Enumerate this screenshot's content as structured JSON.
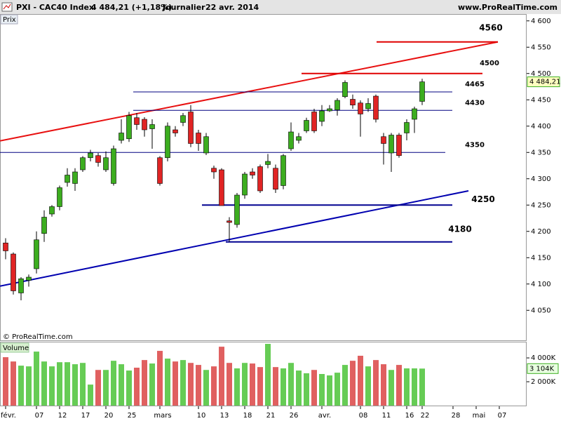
{
  "chart_data": {
    "type": "candlestick",
    "title": "PXI - CAC40 Index",
    "quote": "4 484,21 (+1,18%)",
    "period": "Journalier",
    "date": "22 avr. 2014",
    "source": "www.ProRealTime.com",
    "panel_label": "Prix",
    "copyright": "© ProRealTime.com",
    "up_color": "#3cad1f",
    "down_color": "#e02424",
    "categories": [
      "févr.",
      null,
      null,
      null,
      "07",
      null,
      null,
      "12",
      null,
      null,
      "17",
      null,
      null,
      "20",
      null,
      null,
      "25",
      null,
      null,
      null,
      "mars",
      null,
      null,
      null,
      null,
      "10",
      null,
      null,
      "13",
      null,
      null,
      "18",
      null,
      null,
      "21",
      null,
      null,
      "26",
      null,
      null,
      null,
      "avr.",
      null,
      null,
      null,
      null,
      "08",
      null,
      null,
      "11",
      null,
      null,
      "16",
      null,
      "22",
      null,
      null,
      null,
      "28",
      null,
      null,
      "mai",
      null,
      null,
      "07"
    ],
    "open": [
      4178,
      4157,
      4083,
      4107,
      4129,
      4196,
      4233,
      4247,
      4293,
      4291,
      4317,
      4340,
      4344,
      4317,
      4291,
      4373,
      4376,
      4416,
      4413,
      4395,
      4340,
      4340,
      4393,
      4407,
      4427,
      4387,
      4349,
      4320,
      4317,
      4220,
      4213,
      4269,
      4313,
      4323,
      4327,
      4320,
      4287,
      4357,
      4373,
      4391,
      4427,
      4409,
      4429,
      4431,
      4456,
      4451,
      4444,
      4433,
      4457,
      4380,
      4349,
      4383,
      4387,
      4413,
      4447,
      null,
      null,
      null,
      null,
      null,
      null,
      null,
      null,
      null,
      null
    ],
    "high": [
      4187,
      4160,
      4113,
      4118,
      4200,
      4240,
      4250,
      4287,
      4320,
      4320,
      4343,
      4355,
      4349,
      4352,
      4363,
      4413,
      4427,
      4425,
      4417,
      4413,
      4343,
      4407,
      4400,
      4425,
      4440,
      4393,
      4387,
      4325,
      4320,
      4227,
      4273,
      4313,
      4320,
      4327,
      4347,
      4327,
      4347,
      4407,
      4387,
      4416,
      4433,
      4440,
      4440,
      4453,
      4487,
      4460,
      4449,
      4453,
      4460,
      4387,
      4387,
      4387,
      4413,
      4437,
      4490,
      null,
      null,
      null,
      null,
      null,
      null,
      null,
      null,
      null,
      null
    ],
    "low": [
      4147,
      4080,
      4069,
      4095,
      4120,
      4180,
      4228,
      4240,
      4285,
      4277,
      4313,
      4333,
      4323,
      4313,
      4287,
      4367,
      4370,
      4393,
      4380,
      4357,
      4287,
      4333,
      4380,
      4400,
      4360,
      4353,
      4345,
      4300,
      4249,
      4180,
      4207,
      4262,
      4300,
      4273,
      4320,
      4273,
      4280,
      4353,
      4367,
      4387,
      4387,
      4400,
      4427,
      4420,
      4453,
      4433,
      4380,
      4427,
      4407,
      4327,
      4313,
      4340,
      4373,
      4387,
      4440,
      null,
      null,
      null,
      null,
      null,
      null,
      null,
      null,
      null,
      null
    ],
    "close": [
      4163,
      4087,
      4110,
      4113,
      4184,
      4227,
      4247,
      4283,
      4307,
      4313,
      4340,
      4349,
      4331,
      4340,
      4357,
      4387,
      4420,
      4403,
      4393,
      4403,
      4291,
      4400,
      4387,
      4420,
      4367,
      4367,
      4380,
      4313,
      4249,
      4217,
      4269,
      4309,
      4307,
      4277,
      4333,
      4280,
      4344,
      4389,
      4380,
      4411,
      4391,
      4429,
      4433,
      4449,
      4483,
      4440,
      4423,
      4443,
      4413,
      4367,
      4383,
      4344,
      4407,
      4433,
      4484.21,
      null,
      null,
      null,
      null,
      null,
      null,
      null,
      null,
      null,
      null
    ],
    "close_label": "4 484,21",
    "ylim": [
      3993,
      4613
    ],
    "yticks": [
      {
        "value": 4050,
        "label": "4 050"
      },
      {
        "value": 4100,
        "label": "4 100"
      },
      {
        "value": 4150,
        "label": "4 150"
      },
      {
        "value": 4200,
        "label": "4 200"
      },
      {
        "value": 4250,
        "label": "4 250"
      },
      {
        "value": 4300,
        "label": "4 300"
      },
      {
        "value": 4350,
        "label": "4 350"
      },
      {
        "value": 4400,
        "label": "4 400"
      },
      {
        "value": 4450,
        "label": "4 450"
      },
      {
        "value": 4500,
        "label": "4 500"
      },
      {
        "value": 4550,
        "label": "4 550"
      },
      {
        "value": 4600,
        "label": "4 600"
      }
    ],
    "levels": [
      {
        "value": 4560,
        "color": "#e00000"
      },
      {
        "value": 4500,
        "color": "#e00000"
      },
      {
        "value": 4465,
        "color": "#000080"
      },
      {
        "value": 4430,
        "color": "#000080"
      },
      {
        "value": 4350,
        "color": "#000080"
      },
      {
        "value": 4250,
        "color": "#000090"
      },
      {
        "value": 4180,
        "color": "#000090"
      }
    ],
    "trendlines": [
      {
        "color": "#e81010",
        "values": [
          4372,
          4560
        ]
      },
      {
        "color": "#0000b0",
        "values": [
          4096,
          4277
        ]
      }
    ],
    "volume": {
      "label": "Volume",
      "values": [
        4060,
        3700,
        3350,
        3290,
        4530,
        3700,
        3290,
        3640,
        3640,
        3470,
        3580,
        1760,
        2990,
        2990,
        3760,
        3470,
        2940,
        3180,
        3820,
        3530,
        4590,
        3940,
        3700,
        3820,
        3580,
        3410,
        2990,
        3290,
        4940,
        3580,
        3120,
        3580,
        3530,
        3230,
        5180,
        3230,
        3120,
        3580,
        2940,
        2710,
        2990,
        2650,
        2530,
        2760,
        3410,
        3760,
        4180,
        3290,
        3820,
        3470,
        2990,
        3410,
        3120,
        3120,
        3104,
        null,
        null,
        null,
        null,
        null,
        null,
        null,
        null,
        null,
        null
      ],
      "last_label": "3 104K",
      "ylim": [
        0,
        5300
      ],
      "yticks": [
        {
          "value": 2000,
          "label": "2 000K"
        },
        {
          "value": 4000,
          "label": "4 000K"
        }
      ]
    }
  }
}
